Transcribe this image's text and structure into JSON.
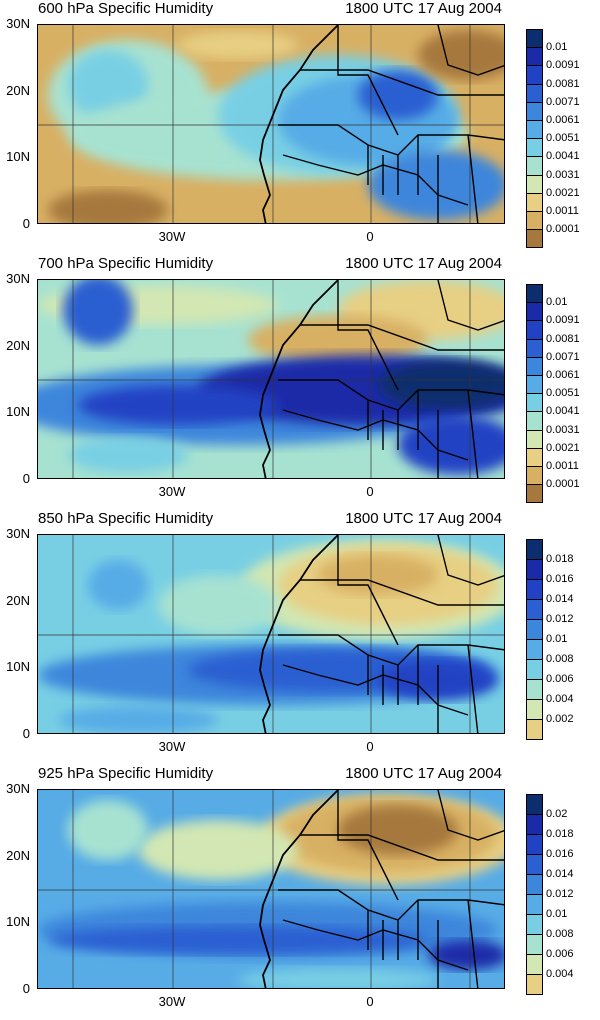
{
  "figure": {
    "panels": [
      {
        "title_left": "600 hPa Specific Humidity",
        "title_right": "1800 UTC 17 Aug 2004",
        "y_ticks": [
          "30N",
          "20N",
          "10N",
          "0"
        ],
        "x_ticks": [
          "30W",
          "0"
        ],
        "legend": {
          "labels": [
            "0.01",
            "0.0091",
            "0.0081",
            "0.0071",
            "0.0061",
            "0.0051",
            "0.0041",
            "0.0031",
            "0.0021",
            "0.0011",
            "0.0001"
          ],
          "colors": [
            "#0c2e6e",
            "#1a2aa8",
            "#2142c4",
            "#2c5fd1",
            "#3c86dc",
            "#57ace6",
            "#78cfe4",
            "#a7e2d1",
            "#d2e7b3",
            "#e7cf83",
            "#d8b064",
            "#a6783e"
          ]
        }
      },
      {
        "title_left": "700 hPa Specific Humidity",
        "title_right": "1800 UTC 17 Aug 2004",
        "y_ticks": [
          "30N",
          "20N",
          "10N",
          "0"
        ],
        "x_ticks": [
          "30W",
          "0"
        ],
        "legend": {
          "labels": [
            "0.01",
            "0.0091",
            "0.0081",
            "0.0071",
            "0.0061",
            "0.0051",
            "0.0041",
            "0.0031",
            "0.0021",
            "0.0011",
            "0.0001"
          ],
          "colors": [
            "#0c2e6e",
            "#1a2aa8",
            "#2142c4",
            "#2c5fd1",
            "#3c86dc",
            "#57ace6",
            "#78cfe4",
            "#a7e2d1",
            "#d2e7b3",
            "#e7cf83",
            "#d8b064",
            "#a6783e"
          ]
        }
      },
      {
        "title_left": "850 hPa Specific Humidity",
        "title_right": "1800 UTC 17 Aug 2004",
        "y_ticks": [
          "30N",
          "20N",
          "10N",
          "0"
        ],
        "x_ticks": [
          "30W",
          "0"
        ],
        "legend": {
          "labels": [
            "0.018",
            "0.016",
            "0.014",
            "0.012",
            "0.01",
            "0.008",
            "0.006",
            "0.004",
            "0.002"
          ],
          "colors": [
            "#0c2e6e",
            "#1a2aa8",
            "#2142c4",
            "#2c5fd1",
            "#3c86dc",
            "#57ace6",
            "#78cfe4",
            "#a7e2d1",
            "#d2e7b3",
            "#e7cf83",
            "#d8b064",
            "#a6783e"
          ]
        }
      },
      {
        "title_left": "925 hPa Specific Humidity",
        "title_right": "1800 UTC 17 Aug 2004",
        "y_ticks": [
          "30N",
          "20N",
          "10N",
          "0"
        ],
        "x_ticks": [
          "30W",
          "0"
        ],
        "legend": {
          "labels": [
            "0.02",
            "0.018",
            "0.016",
            "0.014",
            "0.012",
            "0.01",
            "0.008",
            "0.006",
            "0.004"
          ],
          "colors": [
            "#0c2e6e",
            "#1a2aa8",
            "#2142c4",
            "#2c5fd1",
            "#3c86dc",
            "#57ace6",
            "#78cfe4",
            "#a7e2d1",
            "#d2e7b3",
            "#e7cf83",
            "#d8b064",
            "#a6783e"
          ]
        }
      }
    ]
  }
}
